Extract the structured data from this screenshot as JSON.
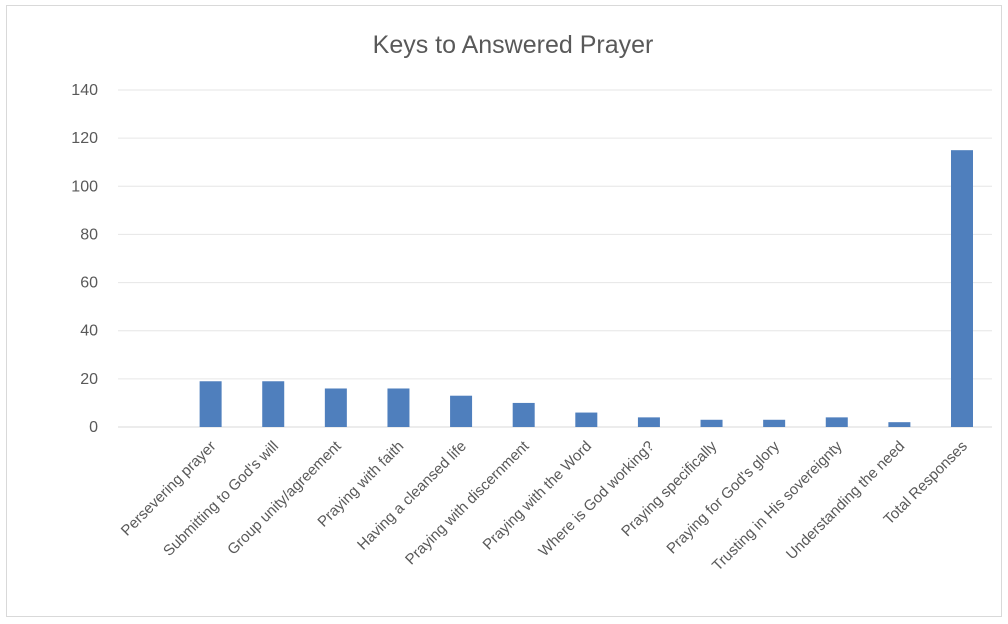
{
  "chart_data": {
    "type": "bar",
    "title": "Keys to Answered Prayer",
    "xlabel": "",
    "ylabel": "",
    "ylim": [
      0,
      140
    ],
    "yticks": [
      0,
      20,
      40,
      60,
      80,
      100,
      120,
      140
    ],
    "grid": true,
    "legend": "none",
    "bar_color": "#4f7fbd",
    "categories": [
      "Persevering prayer",
      "Submitting to God's will",
      "Group unity/agreement",
      "Praying with faith",
      "Having a cleansed life",
      "Praying with discernment",
      "Praying with the Word",
      "Where is God working?",
      "Praying specifically",
      "Praying for God's glory",
      "Trusting in His sovereignty",
      "Understanding the need",
      "Total Responses"
    ],
    "values": [
      19,
      19,
      16,
      16,
      13,
      10,
      6,
      4,
      3,
      3,
      4,
      2,
      115
    ]
  }
}
